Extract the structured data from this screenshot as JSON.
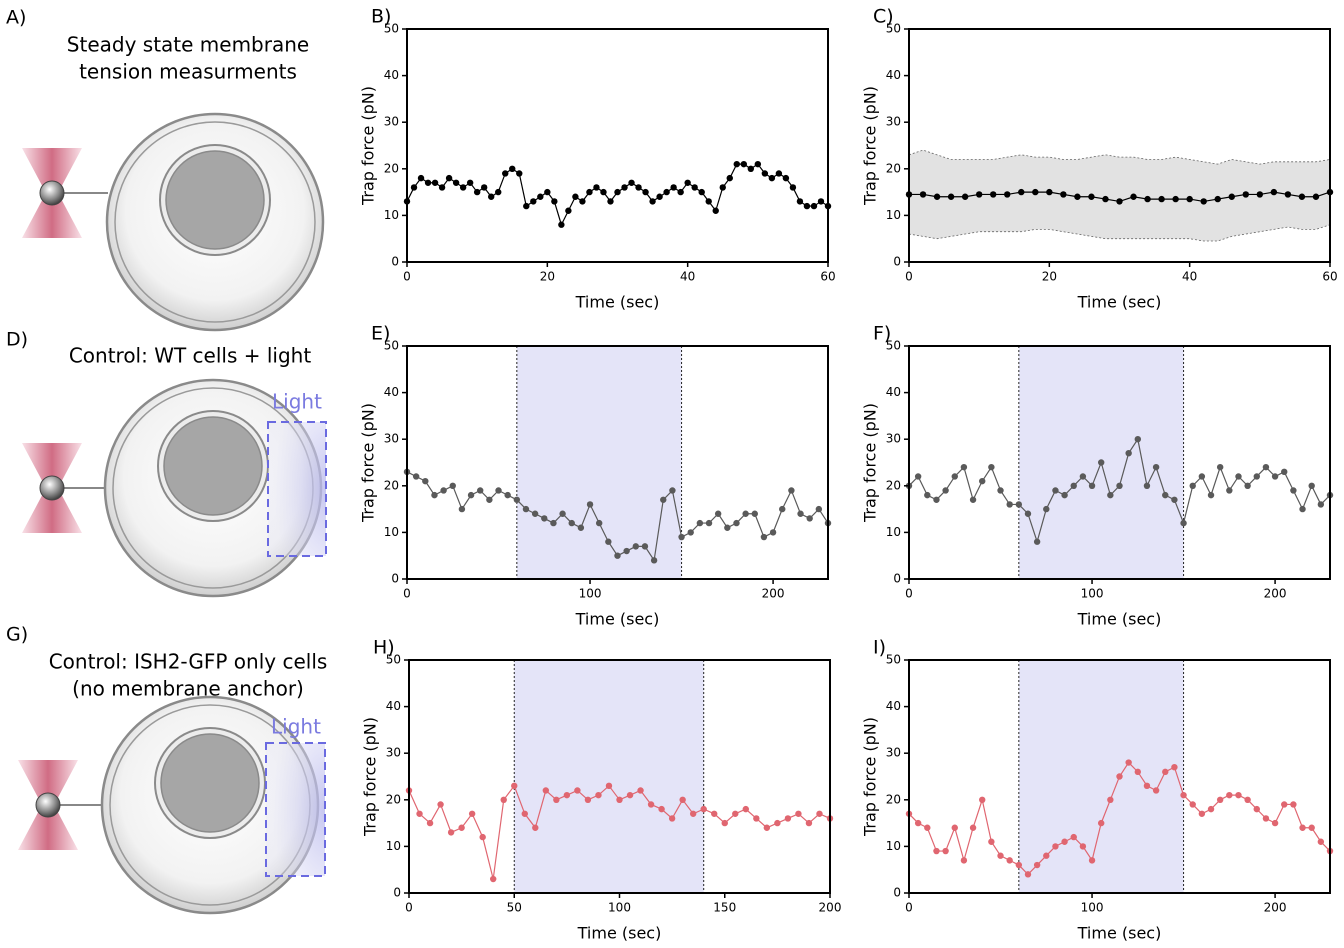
{
  "diagrams": [
    {
      "label": "A)",
      "title": [
        "Steady state membrane",
        "tension measurments"
      ]
    },
    {
      "label": "D)",
      "title": [
        "Control: WT cells + light"
      ],
      "light": "Light"
    },
    {
      "label": "G)",
      "title": [
        "Control: ISH2-GFP only cells",
        "(no membrane anchor)"
      ],
      "light": "Light"
    }
  ],
  "chart_data": [
    {
      "type": "line",
      "label": "B)",
      "xlabel": "Time (sec)",
      "ylabel": "Trap force (pN)",
      "color": "#000000",
      "x": [
        0,
        1,
        2,
        3,
        4,
        5,
        6,
        7,
        8,
        9,
        10,
        11,
        12,
        13,
        14,
        15,
        16,
        17,
        18,
        19,
        20,
        21,
        22,
        23,
        24,
        25,
        26,
        27,
        28,
        29,
        30,
        31,
        32,
        33,
        34,
        35,
        36,
        37,
        38,
        39,
        40,
        41,
        42,
        43,
        44,
        45,
        46,
        47,
        48,
        49,
        50,
        51,
        52,
        53,
        54,
        55,
        56,
        57,
        58,
        59,
        60
      ],
      "values": [
        13,
        16,
        18,
        17,
        17,
        16,
        18,
        17,
        16,
        17,
        15,
        16,
        14,
        15,
        19,
        20,
        19,
        12,
        13,
        14,
        15,
        13,
        8,
        11,
        14,
        13,
        15,
        16,
        15,
        13,
        15,
        16,
        17,
        16,
        15,
        13,
        14,
        15,
        16,
        15,
        17,
        16,
        15,
        13,
        11,
        16,
        18,
        21,
        21,
        20,
        21,
        19,
        18,
        19,
        18,
        16,
        13,
        12,
        12,
        13,
        12
      ],
      "xlim": [
        0,
        60
      ],
      "xticks": [
        0,
        20,
        40,
        60
      ],
      "ylim": [
        0,
        50
      ],
      "yticks": [
        0,
        10,
        20,
        30,
        40,
        50
      ]
    },
    {
      "type": "line",
      "label": "C)",
      "xlabel": "Time (sec)",
      "ylabel": "Trap force (pN)",
      "color": "#000000",
      "band_color": "#e2e2e2",
      "x": [
        0,
        2,
        4,
        6,
        8,
        10,
        12,
        14,
        16,
        18,
        20,
        22,
        24,
        26,
        28,
        30,
        32,
        34,
        36,
        38,
        40,
        42,
        44,
        46,
        48,
        50,
        52,
        54,
        56,
        58,
        60
      ],
      "values": [
        14.5,
        14.5,
        14,
        14,
        14,
        14.5,
        14.5,
        14.5,
        15,
        15,
        15,
        14.5,
        14,
        14,
        13.5,
        13,
        14,
        13.5,
        13.5,
        13.5,
        13.5,
        13,
        13.5,
        14,
        14.5,
        14.5,
        15,
        14.5,
        14,
        14,
        15
      ],
      "upper": [
        23,
        24,
        23,
        22,
        22,
        22,
        22,
        22.5,
        23,
        22.5,
        22.5,
        22,
        22,
        22.5,
        23,
        22.5,
        22.5,
        22,
        22,
        22.5,
        22,
        21.5,
        21,
        22,
        21.5,
        21,
        21.5,
        21.5,
        21.5,
        21.5,
        22
      ],
      "lower": [
        6,
        5.5,
        5,
        5.5,
        6,
        6.5,
        6.5,
        6.5,
        6.5,
        7,
        7,
        6.5,
        6,
        5.5,
        5,
        5,
        5,
        5,
        5,
        5,
        5,
        4.5,
        4.5,
        5.5,
        6,
        6.5,
        7,
        7.5,
        7,
        7,
        8
      ],
      "xlim": [
        0,
        60
      ],
      "xticks": [
        0,
        20,
        40,
        60
      ],
      "ylim": [
        0,
        50
      ],
      "yticks": [
        0,
        10,
        20,
        30,
        40,
        50
      ]
    },
    {
      "type": "line",
      "label": "E)",
      "xlabel": "Time (sec)",
      "ylabel": "Trap force (pN)",
      "color": "#5a5a5a",
      "light_interval": [
        60,
        150
      ],
      "light_color": "#e4e4f8",
      "x": [
        0,
        5,
        10,
        15,
        20,
        25,
        30,
        35,
        40,
        45,
        50,
        55,
        60,
        65,
        70,
        75,
        80,
        85,
        90,
        95,
        100,
        105,
        110,
        115,
        120,
        125,
        130,
        135,
        140,
        145,
        150,
        155,
        160,
        165,
        170,
        175,
        180,
        185,
        190,
        195,
        200,
        205,
        210,
        215,
        220,
        225,
        230
      ],
      "values": [
        23,
        22,
        21,
        18,
        19,
        20,
        15,
        18,
        19,
        17,
        19,
        18,
        17,
        15,
        14,
        13,
        12,
        14,
        12,
        11,
        16,
        12,
        8,
        5,
        6,
        7,
        7,
        4,
        17,
        19,
        9,
        10,
        12,
        12,
        14,
        11,
        12,
        14,
        14,
        9,
        10,
        15,
        19,
        14,
        13,
        15,
        12
      ],
      "xlim": [
        0,
        230
      ],
      "xticks": [
        0,
        100,
        200
      ],
      "ylim": [
        0,
        50
      ],
      "yticks": [
        0,
        10,
        20,
        30,
        40,
        50
      ]
    },
    {
      "type": "line",
      "label": "F)",
      "xlabel": "Time (sec)",
      "ylabel": "Trap force (pN)",
      "color": "#5a5a5a",
      "light_interval": [
        60,
        150
      ],
      "light_color": "#e4e4f8",
      "x": [
        0,
        5,
        10,
        15,
        20,
        25,
        30,
        35,
        40,
        45,
        50,
        55,
        60,
        65,
        70,
        75,
        80,
        85,
        90,
        95,
        100,
        105,
        110,
        115,
        120,
        125,
        130,
        135,
        140,
        145,
        150,
        155,
        160,
        165,
        170,
        175,
        180,
        185,
        190,
        195,
        200,
        205,
        210,
        215,
        220,
        225,
        230
      ],
      "values": [
        20,
        22,
        18,
        17,
        19,
        22,
        24,
        17,
        21,
        24,
        19,
        16,
        16,
        14,
        8,
        15,
        19,
        18,
        20,
        22,
        20,
        25,
        18,
        20,
        27,
        30,
        20,
        24,
        18,
        17,
        12,
        20,
        22,
        18,
        24,
        19,
        22,
        20,
        22,
        24,
        22,
        23,
        19,
        15,
        20,
        16,
        18
      ],
      "xlim": [
        0,
        230
      ],
      "xticks": [
        0,
        100,
        200
      ],
      "ylim": [
        0,
        50
      ],
      "yticks": [
        0,
        10,
        20,
        30,
        40,
        50
      ]
    },
    {
      "type": "line",
      "label": "H)",
      "xlabel": "Time (sec)",
      "ylabel": "Trap force (pN)",
      "color": "#e06670",
      "light_interval": [
        50,
        140
      ],
      "light_color": "#e4e4f8",
      "x": [
        0,
        5,
        10,
        15,
        20,
        25,
        30,
        35,
        40,
        45,
        50,
        55,
        60,
        65,
        70,
        75,
        80,
        85,
        90,
        95,
        100,
        105,
        110,
        115,
        120,
        125,
        130,
        135,
        140,
        145,
        150,
        155,
        160,
        165,
        170,
        175,
        180,
        185,
        190,
        195,
        200
      ],
      "values": [
        22,
        17,
        15,
        19,
        13,
        14,
        17,
        12,
        3,
        20,
        23,
        17,
        14,
        22,
        20,
        21,
        22,
        20,
        21,
        23,
        20,
        21,
        22,
        19,
        18,
        16,
        20,
        17,
        18,
        17,
        15,
        17,
        18,
        16,
        14,
        15,
        16,
        17,
        15,
        17,
        16
      ],
      "xlim": [
        0,
        200
      ],
      "xticks": [
        0,
        50,
        100,
        150,
        200
      ],
      "ylim": [
        0,
        50
      ],
      "yticks": [
        0,
        10,
        20,
        30,
        40,
        50
      ]
    },
    {
      "type": "line",
      "label": "I)",
      "xlabel": "Time (sec)",
      "ylabel": "Trap force (pN)",
      "color": "#e06670",
      "light_interval": [
        60,
        150
      ],
      "light_color": "#e4e4f8",
      "x": [
        0,
        5,
        10,
        15,
        20,
        25,
        30,
        35,
        40,
        45,
        50,
        55,
        60,
        65,
        70,
        75,
        80,
        85,
        90,
        95,
        100,
        105,
        110,
        115,
        120,
        125,
        130,
        135,
        140,
        145,
        150,
        155,
        160,
        165,
        170,
        175,
        180,
        185,
        190,
        195,
        200,
        205,
        210,
        215,
        220,
        225,
        230
      ],
      "values": [
        17,
        15,
        14,
        9,
        9,
        14,
        7,
        14,
        20,
        11,
        8,
        7,
        6,
        4,
        6,
        8,
        10,
        11,
        12,
        10,
        7,
        15,
        20,
        25,
        28,
        26,
        23,
        22,
        26,
        27,
        21,
        19,
        17,
        18,
        20,
        21,
        21,
        20,
        18,
        16,
        15,
        19,
        19,
        14,
        14,
        11,
        9
      ],
      "xlim": [
        0,
        230
      ],
      "xticks": [
        0,
        100,
        200
      ],
      "ylim": [
        0,
        50
      ],
      "yticks": [
        0,
        10,
        20,
        30,
        40,
        50
      ]
    }
  ]
}
